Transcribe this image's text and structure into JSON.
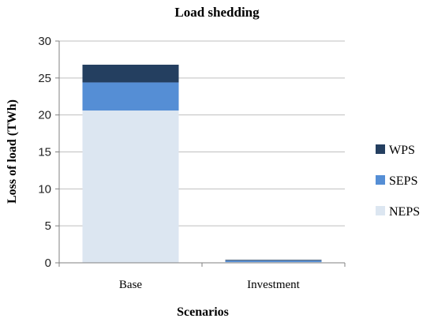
{
  "chart_data": {
    "type": "bar",
    "stacked": true,
    "title": "Load shedding",
    "xlabel": "Scenarios",
    "ylabel": "Loss of load (TWh)",
    "ylim": [
      0,
      30
    ],
    "yticks": [
      0,
      5,
      10,
      15,
      20,
      25,
      30
    ],
    "grid": true,
    "legend_position": "right",
    "categories": [
      "Base",
      "Investment"
    ],
    "series": [
      {
        "name": "NEPS",
        "color": "#dce6f1",
        "values": [
          20.6,
          0.1
        ]
      },
      {
        "name": "SEPS",
        "color": "#558ed5",
        "values": [
          3.8,
          0.2
        ]
      },
      {
        "name": "WPS",
        "color": "#243f60",
        "values": [
          2.4,
          0.1
        ]
      }
    ],
    "legend_order": [
      "WPS",
      "SEPS",
      "NEPS"
    ]
  }
}
